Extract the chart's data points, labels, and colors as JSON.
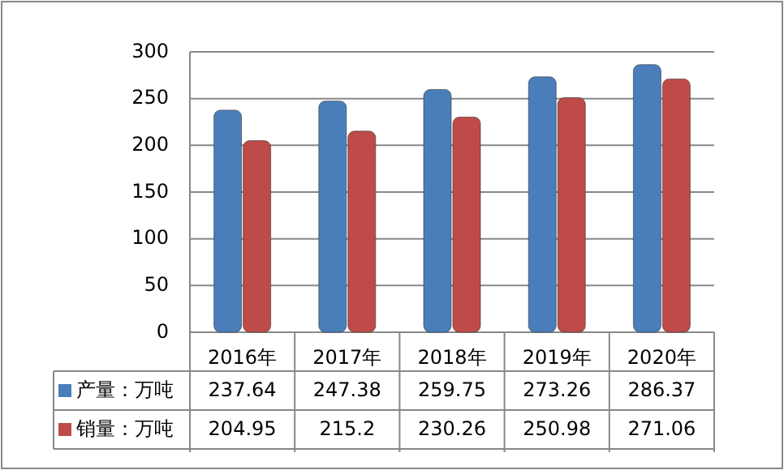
{
  "chart_data": {
    "type": "bar",
    "categories": [
      "2016年",
      "2017年",
      "2018年",
      "2019年",
      "2020年"
    ],
    "series": [
      {
        "name": "产量：万吨",
        "color": "#4a7ebb",
        "values": [
          237.64,
          247.38,
          259.75,
          273.26,
          286.37
        ]
      },
      {
        "name": "销量：万吨",
        "color": "#be4b48",
        "values": [
          204.95,
          215.2,
          230.26,
          250.98,
          271.06
        ]
      }
    ],
    "ylim": [
      0,
      300
    ],
    "yticks": [
      0,
      50,
      100,
      150,
      200,
      250,
      300
    ],
    "grid": "y",
    "legend": "bottom",
    "data_labels": true
  }
}
